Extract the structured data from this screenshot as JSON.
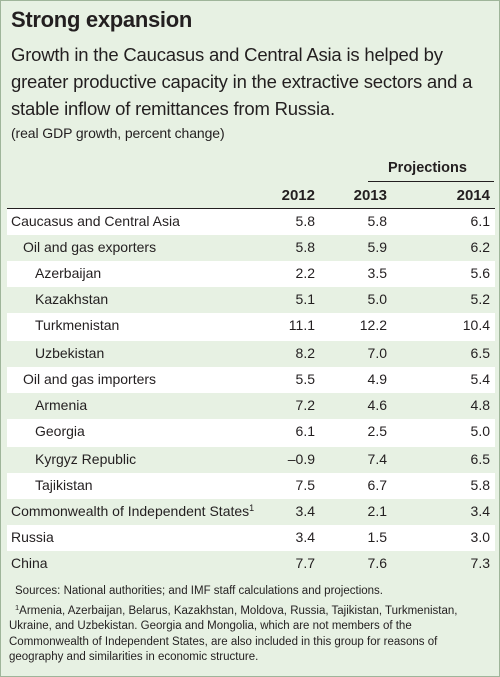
{
  "title": "Strong expansion",
  "subtitle": "Growth in the Caucasus and Central Asia is helped by greater productive capacity in the extractive sectors and a stable inflow of remittances from Russia.",
  "unit_note": "(real GDP growth, percent change)",
  "projections_label": "Projections",
  "columns": [
    "2012",
    "2013",
    "2014"
  ],
  "rows": [
    {
      "label": "Caucasus and Central Asia",
      "level": 0,
      "values": [
        "5.8",
        "5.8",
        "6.1"
      ]
    },
    {
      "label": "Oil and gas exporters",
      "level": 1,
      "values": [
        "5.8",
        "5.9",
        "6.2"
      ]
    },
    {
      "label": "Azerbaijan",
      "level": 2,
      "values": [
        "2.2",
        "3.5",
        "5.6"
      ]
    },
    {
      "label": "Kazakhstan",
      "level": 2,
      "values": [
        "5.1",
        "5.0",
        "5.2"
      ]
    },
    {
      "label": "Turkmenistan",
      "level": 2,
      "values": [
        "11.1",
        "12.2",
        "10.4"
      ]
    },
    {
      "label": "Uzbekistan",
      "level": 2,
      "values": [
        "8.2",
        "7.0",
        "6.5"
      ]
    },
    {
      "label": "Oil and gas importers",
      "level": 1,
      "values": [
        "5.5",
        "4.9",
        "5.4"
      ]
    },
    {
      "label": "Armenia",
      "level": 2,
      "values": [
        "7.2",
        "4.6",
        "4.8"
      ]
    },
    {
      "label": "Georgia",
      "level": 2,
      "values": [
        "6.1",
        "2.5",
        "5.0"
      ]
    },
    {
      "label": "Kyrgyz Republic",
      "level": 2,
      "values": [
        "–0.9",
        "7.4",
        "6.5"
      ]
    },
    {
      "label": "Tajikistan",
      "level": 2,
      "values": [
        "7.5",
        "6.7",
        "5.8"
      ]
    },
    {
      "label": "Commonwealth of Independent States",
      "footnote": "1",
      "level": 0,
      "values": [
        "3.4",
        "2.1",
        "3.4"
      ]
    },
    {
      "label": "Russia",
      "level": 0,
      "values": [
        "3.4",
        "1.5",
        "3.0"
      ]
    },
    {
      "label": "China",
      "level": 0,
      "values": [
        "7.7",
        "7.6",
        "7.3"
      ]
    }
  ],
  "sources": "Sources: National authorities; and IMF staff calculations and projections.",
  "footnote": {
    "mark": "1",
    "lines": [
      "Armenia, Azerbaijan, Belarus, Kazakhstan, Moldova, Russia, Tajikistan, Turkmenistan,",
      "Ukraine, and Uzbekistan. Georgia and Mongolia, which are not members of the",
      "Commonwealth of Independent States, are also included in this group for reasons of",
      "geography and similarities in economic structure."
    ]
  },
  "colors": {
    "panel_background": "#e7f1e3",
    "row_white": "#ffffff",
    "row_tint": "#e7f1e3",
    "text": "#231f20"
  }
}
